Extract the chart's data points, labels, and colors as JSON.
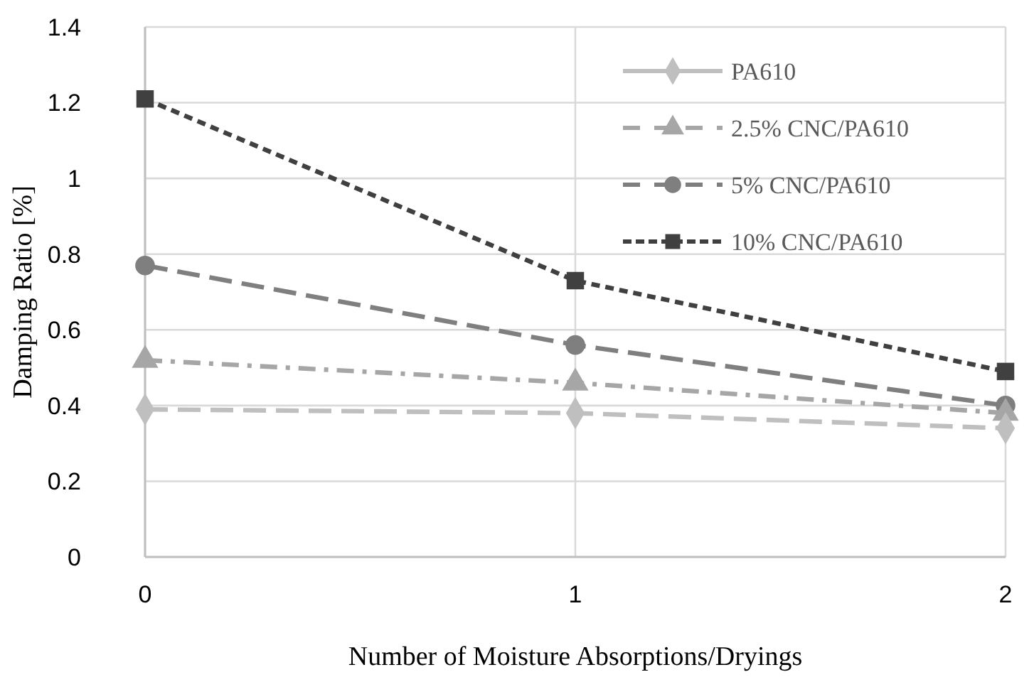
{
  "chart_data": {
    "type": "line",
    "xlabel": "Number of Moisture Absorptions/Dryings",
    "ylabel": "Damping Ratio [%]",
    "x": [
      0,
      1,
      2
    ],
    "xlim": [
      0,
      2
    ],
    "xticks": [
      0,
      1,
      2
    ],
    "ylim": [
      0,
      1.4
    ],
    "yticks": [
      0,
      0.2,
      0.4,
      0.6,
      0.8,
      1,
      1.2,
      1.4
    ],
    "grid": true,
    "legend": "top right",
    "series": [
      {
        "name": "PA610",
        "color": "#bfbfbf",
        "values": [
          0.39,
          0.38,
          0.34
        ],
        "marker": "diamond",
        "line_style": "dashed"
      },
      {
        "name": "2.5% CNC/PA610",
        "color": "#a6a6a6",
        "values": [
          0.52,
          0.46,
          0.38
        ],
        "marker": "triangle",
        "line_style": "dashdot"
      },
      {
        "name": "5% CNC/PA610",
        "color": "#7f7f7f",
        "values": [
          0.77,
          0.56,
          0.4
        ],
        "marker": "circle",
        "line_style": "dashed"
      },
      {
        "name": "10% CNC/PA610",
        "color": "#404040",
        "values": [
          1.21,
          0.73,
          0.49
        ],
        "marker": "square",
        "line_style": "dotted"
      }
    ]
  }
}
